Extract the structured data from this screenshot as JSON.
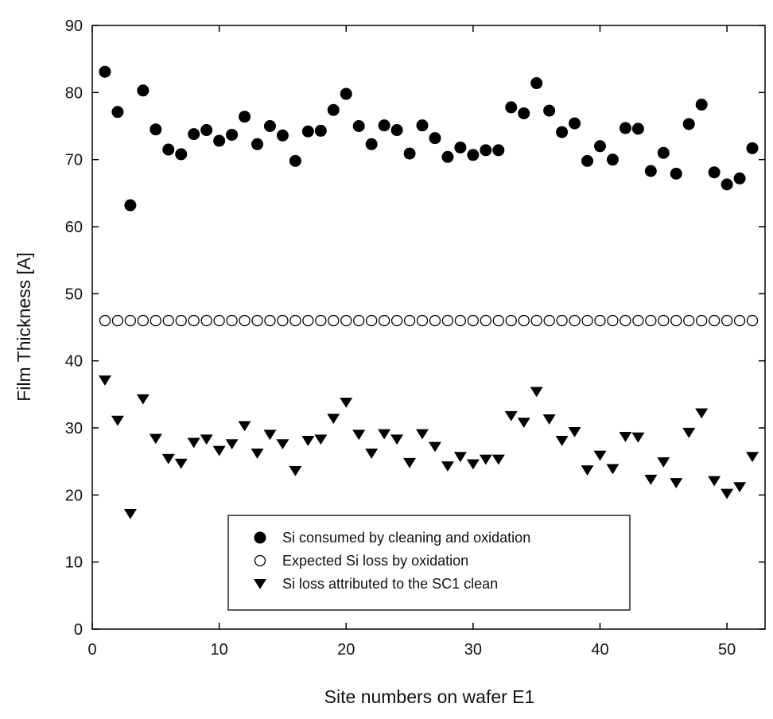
{
  "chart_data": {
    "type": "scatter",
    "title": "",
    "xlabel": "Site numbers on wafer E1",
    "ylabel": "Film Thickness [A]",
    "xlim": [
      0,
      53
    ],
    "ylim": [
      0,
      90
    ],
    "x_ticks": [
      0,
      10,
      20,
      30,
      40,
      50
    ],
    "y_ticks": [
      0,
      10,
      20,
      30,
      40,
      50,
      60,
      70,
      80,
      90
    ],
    "grid": false,
    "legend_position": "bottom-center",
    "x": [
      1,
      2,
      3,
      4,
      5,
      6,
      7,
      8,
      9,
      10,
      11,
      12,
      13,
      14,
      15,
      16,
      17,
      18,
      19,
      20,
      21,
      22,
      23,
      24,
      25,
      26,
      27,
      28,
      29,
      30,
      31,
      32,
      33,
      34,
      35,
      36,
      37,
      38,
      39,
      40,
      41,
      42,
      43,
      44,
      45,
      46,
      47,
      48,
      49,
      50,
      51,
      52
    ],
    "series": [
      {
        "name": "Si consumed by cleaning and oxidation",
        "marker": "filled-circle",
        "values": [
          83.1,
          77.1,
          63.2,
          80.3,
          74.5,
          71.5,
          70.8,
          73.8,
          74.4,
          72.8,
          73.7,
          76.4,
          72.3,
          75.0,
          73.6,
          69.8,
          74.2,
          74.3,
          77.4,
          79.8,
          75.0,
          72.3,
          75.1,
          74.4,
          70.9,
          75.1,
          73.2,
          70.4,
          71.8,
          70.7,
          71.4,
          71.4,
          77.8,
          76.9,
          81.4,
          77.3,
          74.1,
          75.4,
          69.8,
          72.0,
          70.0,
          74.7,
          74.6,
          68.3,
          71.0,
          67.9,
          75.3,
          78.2,
          68.1,
          66.3,
          67.2,
          71.7
        ]
      },
      {
        "name": "Expected Si loss by oxidation",
        "marker": "open-circle",
        "values": [
          46,
          46,
          46,
          46,
          46,
          46,
          46,
          46,
          46,
          46,
          46,
          46,
          46,
          46,
          46,
          46,
          46,
          46,
          46,
          46,
          46,
          46,
          46,
          46,
          46,
          46,
          46,
          46,
          46,
          46,
          46,
          46,
          46,
          46,
          46,
          46,
          46,
          46,
          46,
          46,
          46,
          46,
          46,
          46,
          46,
          46,
          46,
          46,
          46,
          46,
          46,
          46
        ]
      },
      {
        "name": "Si loss attributed to the SC1 clean",
        "marker": "filled-triangle-down",
        "values": [
          37.1,
          31.1,
          17.2,
          34.3,
          28.4,
          25.4,
          24.7,
          27.8,
          28.3,
          26.6,
          27.6,
          30.3,
          26.2,
          29.0,
          27.6,
          23.6,
          28.1,
          28.3,
          31.4,
          33.8,
          29.0,
          26.2,
          29.1,
          28.3,
          24.8,
          29.1,
          27.2,
          24.3,
          25.7,
          24.6,
          25.3,
          25.3,
          31.8,
          30.8,
          35.4,
          31.3,
          28.1,
          29.4,
          23.7,
          25.9,
          23.9,
          28.7,
          28.6,
          22.3,
          24.9,
          21.8,
          29.3,
          32.2,
          22.1,
          20.2,
          21.2,
          25.7
        ]
      }
    ]
  },
  "colors": {
    "marker_fill": "#000000",
    "open_marker_fill": "#ffffff",
    "axis": "#000000"
  }
}
